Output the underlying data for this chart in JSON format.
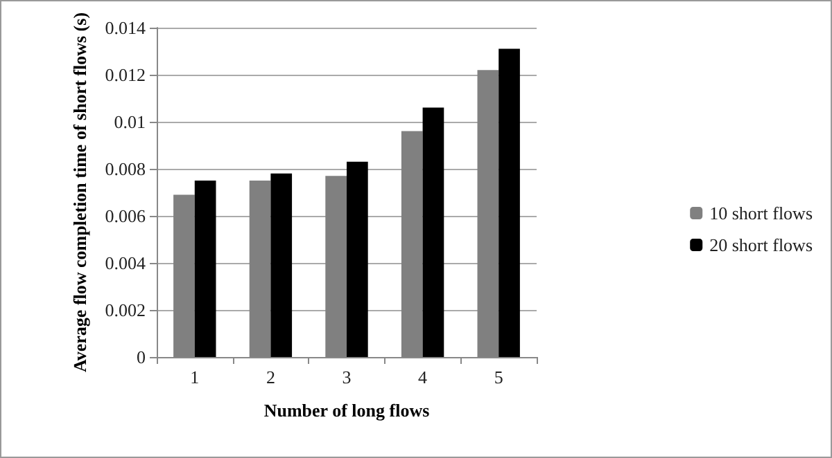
{
  "chart_data": {
    "type": "bar",
    "xlabel": "Number of long flows",
    "ylabel": "Average flow completion time of short flows (s)",
    "categories": [
      "1",
      "2",
      "3",
      "4",
      "5"
    ],
    "series": [
      {
        "name": "10 short flows",
        "color": "#808080",
        "values": [
          0.0069,
          0.0075,
          0.0077,
          0.0096,
          0.0122
        ]
      },
      {
        "name": "20 short flows",
        "color": "#000000",
        "values": [
          0.0075,
          0.0078,
          0.0083,
          0.0106,
          0.0131
        ]
      }
    ],
    "ylim": [
      0,
      0.014
    ],
    "yticks": [
      0,
      0.002,
      0.004,
      0.006,
      0.008,
      0.01,
      0.012,
      0.014
    ],
    "grid": "y",
    "legend": "right"
  }
}
